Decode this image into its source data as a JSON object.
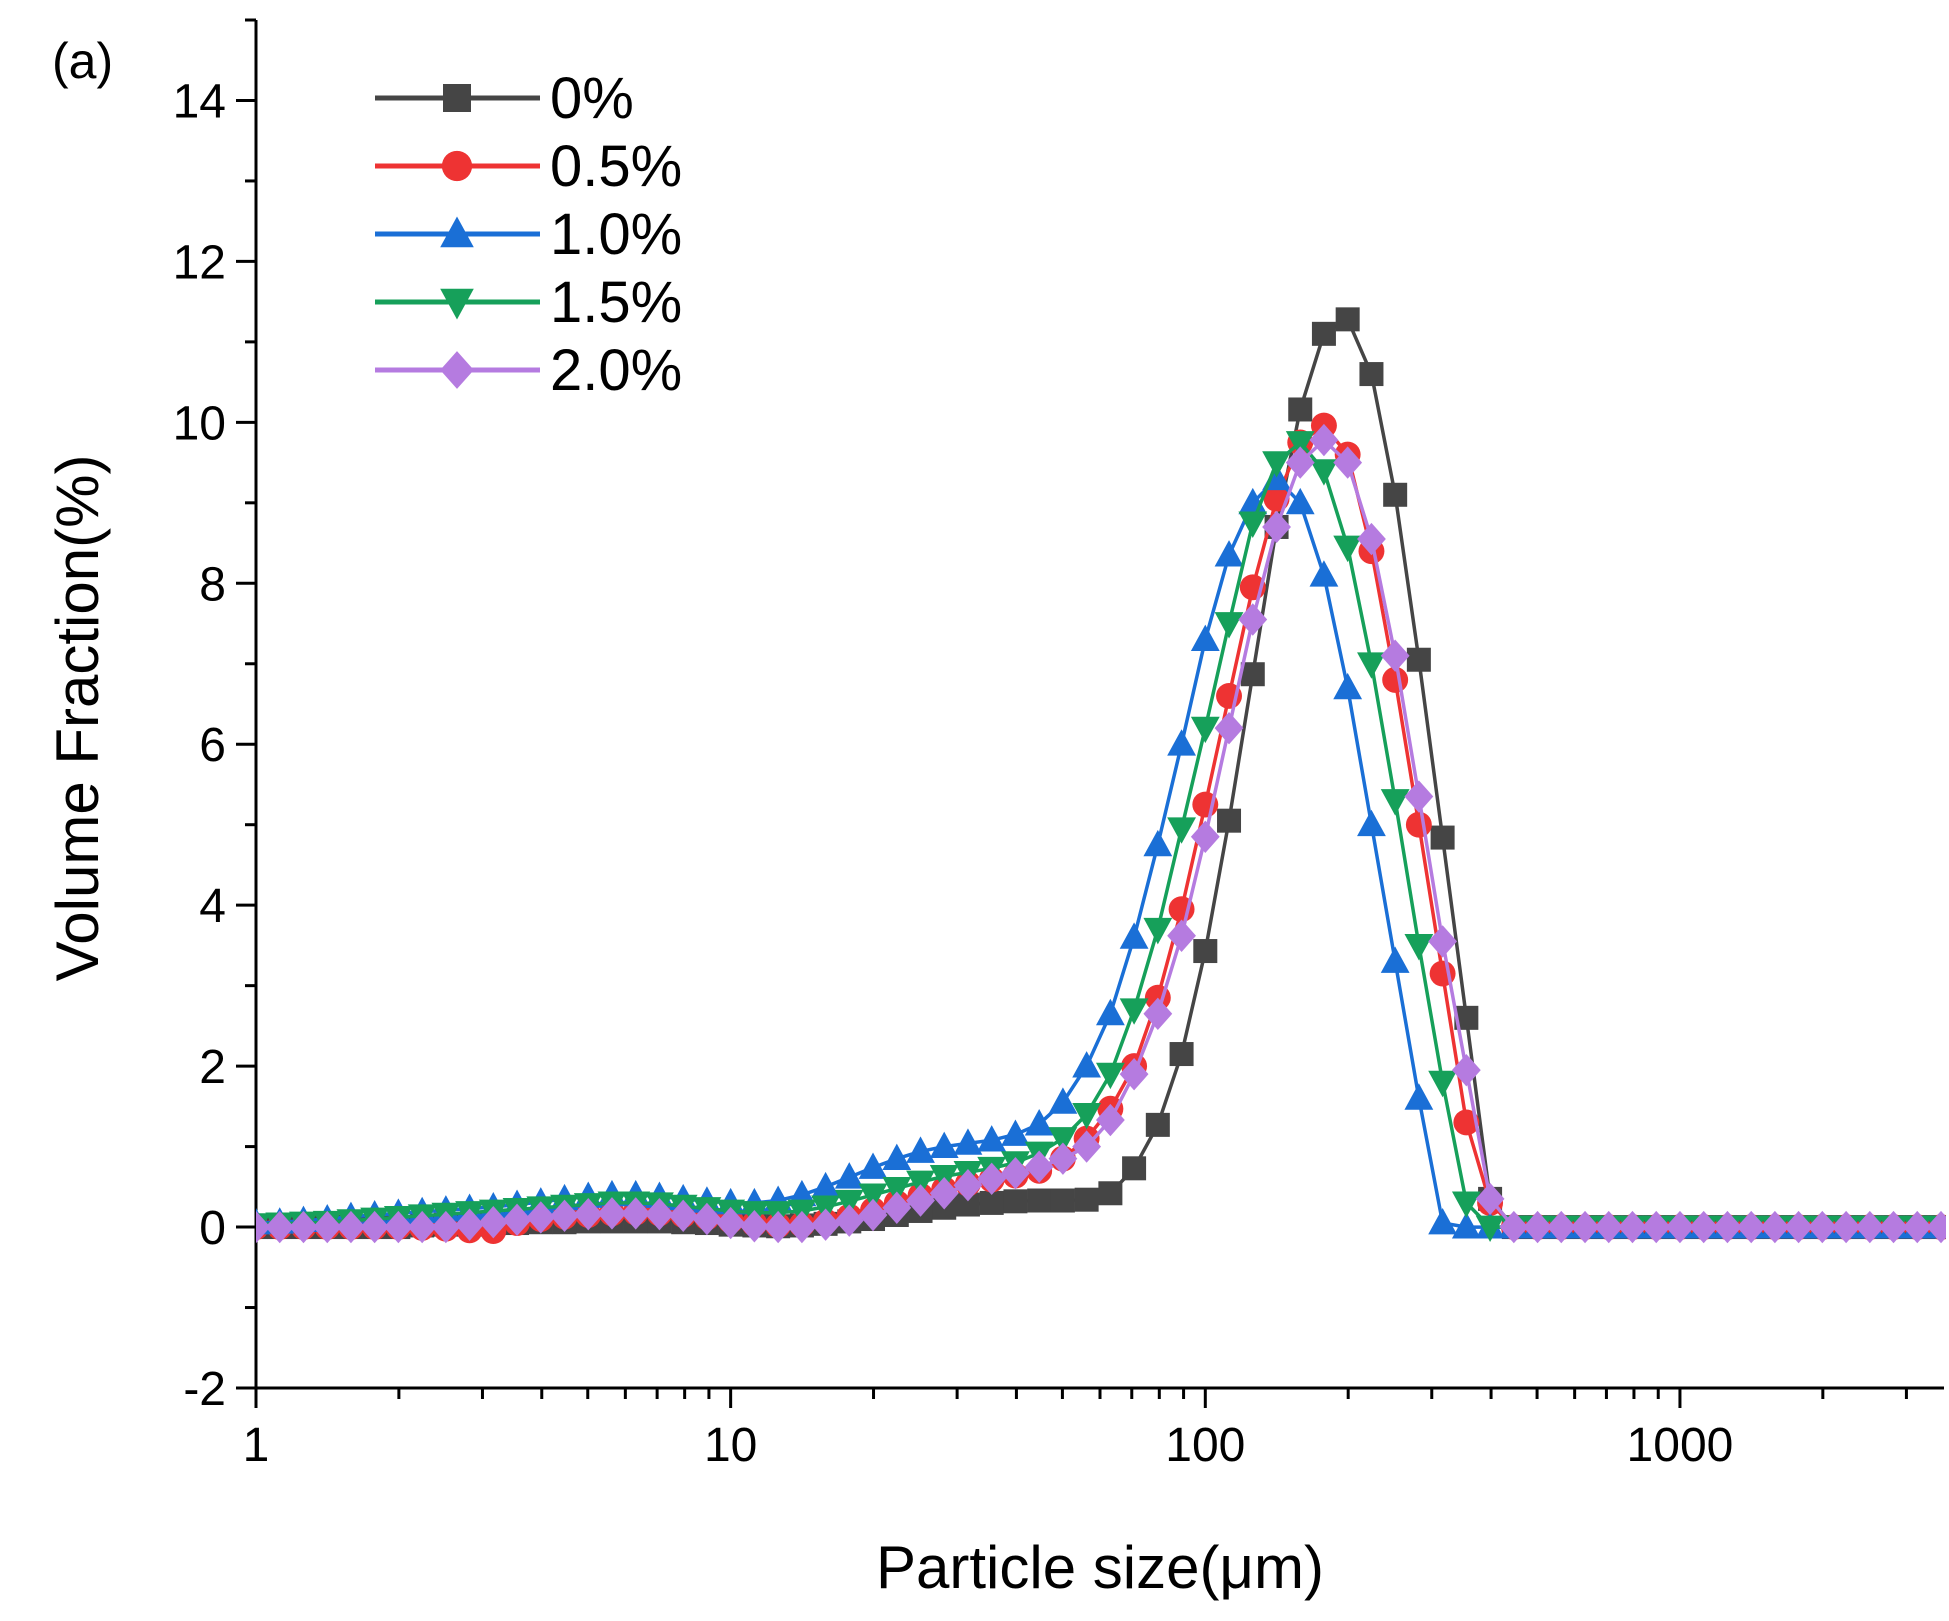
{
  "panel_label": "(a)",
  "chart_data": {
    "type": "line",
    "xlabel": "Particle size(μm)",
    "ylabel": "Volume Fraction(%)",
    "x_scale": "log",
    "xlim": [
      1,
      3600
    ],
    "ylim": [
      -2,
      15
    ],
    "x_ticks": [
      1,
      10,
      100,
      1000
    ],
    "x_tick_labels": [
      "1",
      "10",
      "100",
      "1000"
    ],
    "y_ticks": [
      -2,
      0,
      2,
      4,
      6,
      8,
      10,
      12,
      14
    ],
    "y_tick_labels": [
      "-2",
      "0",
      "2",
      "4",
      "6",
      "8",
      "10",
      "12",
      "14"
    ],
    "grid": false,
    "legend_position": "top-left",
    "series": [
      {
        "name": "0%",
        "color": "#454545",
        "marker": "square",
        "x": [
          1,
          1.122,
          1.259,
          1.413,
          1.585,
          1.778,
          1.995,
          2.239,
          2.512,
          2.818,
          3.162,
          3.548,
          3.981,
          4.467,
          5.012,
          5.623,
          6.31,
          7.079,
          7.943,
          8.913,
          10,
          11.22,
          12.59,
          14.13,
          15.85,
          17.78,
          19.95,
          22.39,
          25.12,
          28.18,
          31.62,
          35.48,
          39.81,
          44.67,
          50.12,
          56.23,
          63.1,
          70.79,
          79.43,
          89.13,
          100,
          112.2,
          125.9,
          141.3,
          158.5,
          177.8,
          199.5,
          223.9,
          251.2,
          281.8,
          316.2,
          354.8,
          398.1,
          446.7,
          501.2,
          562.3,
          631,
          707.9,
          794.3,
          891.3,
          1000,
          1122,
          1259,
          1413,
          1585,
          1778,
          1995,
          2239,
          2512,
          2818,
          3162,
          3548
        ],
        "y": [
          0,
          0,
          0,
          0,
          0,
          0,
          0,
          0.02,
          0.03,
          0.03,
          0.04,
          0.05,
          0.06,
          0.06,
          0.07,
          0.07,
          0.07,
          0.07,
          0.06,
          0.05,
          0.03,
          0.02,
          0.01,
          0.02,
          0.04,
          0.07,
          0.1,
          0.15,
          0.2,
          0.24,
          0.28,
          0.3,
          0.32,
          0.33,
          0.33,
          0.34,
          0.42,
          0.73,
          1.27,
          2.15,
          3.43,
          5.05,
          6.87,
          8.7,
          10.16,
          11.1,
          11.28,
          10.6,
          9.1,
          7.05,
          4.84,
          2.6,
          0.35,
          0,
          0,
          0,
          0,
          0,
          0,
          0,
          0,
          0,
          0,
          0,
          0,
          0,
          0,
          0,
          0,
          0,
          0,
          0
        ]
      },
      {
        "name": "0.5%",
        "color": "#ee3333",
        "marker": "circle",
        "x": [
          1,
          1.122,
          1.259,
          1.413,
          1.585,
          1.778,
          1.995,
          2.239,
          2.512,
          2.818,
          3.162,
          3.548,
          3.981,
          4.467,
          5.012,
          5.623,
          6.31,
          7.079,
          7.943,
          8.913,
          10,
          11.22,
          12.59,
          14.13,
          15.85,
          17.78,
          19.95,
          22.39,
          25.12,
          28.18,
          31.62,
          35.48,
          39.81,
          44.67,
          50.12,
          56.23,
          63.1,
          70.79,
          79.43,
          89.13,
          100,
          112.2,
          125.9,
          141.3,
          158.5,
          177.8,
          199.5,
          223.9,
          251.2,
          281.8,
          316.2,
          354.8,
          398.1,
          446.7,
          501.2,
          562.3,
          631,
          707.9,
          794.3,
          891.3,
          1000,
          1122,
          1259,
          1413,
          1585,
          1778,
          1995,
          2239,
          2512,
          2818,
          3162,
          3548
        ],
        "y": [
          0,
          0,
          0,
          0,
          0,
          0,
          0,
          -0.01,
          -0.02,
          -0.04,
          -0.05,
          0.05,
          0.1,
          0.13,
          0.15,
          0.17,
          0.18,
          0.17,
          0.15,
          0.12,
          0.08,
          0.04,
          0.02,
          0.03,
          0.07,
          0.13,
          0.21,
          0.3,
          0.39,
          0.47,
          0.54,
          0.59,
          0.64,
          0.7,
          0.85,
          1.1,
          1.47,
          2.0,
          2.85,
          3.95,
          5.25,
          6.6,
          7.95,
          9.05,
          9.75,
          9.96,
          9.6,
          8.4,
          6.8,
          5.0,
          3.15,
          1.3,
          0.3,
          0,
          0,
          0,
          0,
          0,
          0,
          0,
          0,
          0,
          0,
          0,
          0,
          0,
          0,
          0,
          0,
          0,
          0,
          0
        ]
      },
      {
        "name": "1.0%",
        "color": "#1a6fd6",
        "marker": "triangle-up",
        "x": [
          1,
          1.122,
          1.259,
          1.413,
          1.585,
          1.778,
          1.995,
          2.239,
          2.512,
          2.818,
          3.162,
          3.548,
          3.981,
          4.467,
          5.012,
          5.623,
          6.31,
          7.079,
          7.943,
          8.913,
          10,
          11.22,
          12.59,
          14.13,
          15.85,
          17.78,
          19.95,
          22.39,
          25.12,
          28.18,
          31.62,
          35.48,
          39.81,
          44.67,
          50.12,
          56.23,
          63.1,
          70.79,
          79.43,
          89.13,
          100,
          112.2,
          125.9,
          141.3,
          158.5,
          177.8,
          199.5,
          223.9,
          251.2,
          281.8,
          316.2,
          354.8,
          398.1,
          446.7,
          501.2,
          562.3,
          631,
          707.9,
          794.3,
          891.3,
          1000,
          1122,
          1259,
          1413,
          1585,
          1778,
          1995,
          2239,
          2512,
          2818,
          3162,
          3548
        ],
        "y": [
          0.05,
          0.06,
          0.08,
          0.1,
          0.13,
          0.15,
          0.17,
          0.19,
          0.21,
          0.23,
          0.25,
          0.28,
          0.31,
          0.35,
          0.38,
          0.4,
          0.4,
          0.38,
          0.35,
          0.32,
          0.3,
          0.3,
          0.33,
          0.4,
          0.5,
          0.62,
          0.74,
          0.85,
          0.94,
          1.0,
          1.04,
          1.08,
          1.15,
          1.28,
          1.55,
          2.0,
          2.65,
          3.6,
          4.75,
          6.0,
          7.3,
          8.35,
          9.0,
          9.3,
          9.0,
          8.1,
          6.7,
          5.0,
          3.3,
          1.6,
          0.05,
          0,
          0,
          0,
          0,
          0,
          0,
          0,
          0,
          0,
          0,
          0,
          0,
          0,
          0,
          0,
          0,
          0,
          0,
          0,
          0,
          0
        ]
      },
      {
        "name": "1.5%",
        "color": "#16a05a",
        "marker": "triangle-down",
        "x": [
          1,
          1.122,
          1.259,
          1.413,
          1.585,
          1.778,
          1.995,
          2.239,
          2.512,
          2.818,
          3.162,
          3.548,
          3.981,
          4.467,
          5.012,
          5.623,
          6.31,
          7.079,
          7.943,
          8.913,
          10,
          11.22,
          12.59,
          14.13,
          15.85,
          17.78,
          19.95,
          22.39,
          25.12,
          28.18,
          31.62,
          35.48,
          39.81,
          44.67,
          50.12,
          56.23,
          63.1,
          70.79,
          79.43,
          89.13,
          100,
          112.2,
          125.9,
          141.3,
          158.5,
          177.8,
          199.5,
          223.9,
          251.2,
          281.8,
          316.2,
          354.8,
          398.1,
          446.7,
          501.2,
          562.3,
          631,
          707.9,
          794.3,
          891.3,
          1000,
          1122,
          1259,
          1413,
          1585,
          1778,
          1995,
          2239,
          2512,
          2818,
          3162,
          3548
        ],
        "y": [
          0.03,
          0.04,
          0.05,
          0.06,
          0.08,
          0.1,
          0.12,
          0.14,
          0.16,
          0.18,
          0.2,
          0.22,
          0.24,
          0.26,
          0.28,
          0.3,
          0.3,
          0.29,
          0.26,
          0.23,
          0.2,
          0.18,
          0.18,
          0.2,
          0.25,
          0.32,
          0.4,
          0.48,
          0.56,
          0.63,
          0.68,
          0.73,
          0.8,
          0.92,
          1.1,
          1.4,
          1.9,
          2.7,
          3.7,
          4.95,
          6.2,
          7.5,
          8.75,
          9.5,
          9.75,
          9.4,
          8.45,
          7.0,
          5.3,
          3.5,
          1.8,
          0.3,
          0,
          0,
          0,
          0,
          0,
          0,
          0,
          0,
          0,
          0,
          0,
          0,
          0,
          0,
          0,
          0,
          0,
          0,
          0,
          0
        ]
      },
      {
        "name": "2.0%",
        "color": "#b57be0",
        "marker": "diamond",
        "x": [
          1,
          1.122,
          1.259,
          1.413,
          1.585,
          1.778,
          1.995,
          2.239,
          2.512,
          2.818,
          3.162,
          3.548,
          3.981,
          4.467,
          5.012,
          5.623,
          6.31,
          7.079,
          7.943,
          8.913,
          10,
          11.22,
          12.59,
          14.13,
          15.85,
          17.78,
          19.95,
          22.39,
          25.12,
          28.18,
          31.62,
          35.48,
          39.81,
          44.67,
          50.12,
          56.23,
          63.1,
          70.79,
          79.43,
          89.13,
          100,
          112.2,
          125.9,
          141.3,
          158.5,
          177.8,
          199.5,
          223.9,
          251.2,
          281.8,
          316.2,
          354.8,
          398.1,
          446.7,
          501.2,
          562.3,
          631,
          707.9,
          794.3,
          891.3,
          1000,
          1122,
          1259,
          1413,
          1585,
          1778,
          1995,
          2239,
          2512,
          2818,
          3162,
          3548
        ],
        "y": [
          0,
          0,
          0,
          0,
          0,
          0,
          0,
          0,
          0,
          0.03,
          0.06,
          0.09,
          0.12,
          0.14,
          0.16,
          0.17,
          0.17,
          0.16,
          0.14,
          0.1,
          0.05,
          0.01,
          0,
          0,
          0.03,
          0.08,
          0.15,
          0.24,
          0.33,
          0.42,
          0.52,
          0.6,
          0.67,
          0.75,
          0.85,
          1.0,
          1.33,
          1.9,
          2.65,
          3.62,
          4.85,
          6.2,
          7.55,
          8.7,
          9.5,
          9.78,
          9.5,
          8.55,
          7.1,
          5.35,
          3.55,
          1.95,
          0.35,
          0,
          0,
          0,
          0,
          0,
          0,
          0,
          0,
          0,
          0,
          0,
          0,
          0,
          0,
          0,
          0,
          0,
          0,
          0
        ]
      }
    ]
  }
}
